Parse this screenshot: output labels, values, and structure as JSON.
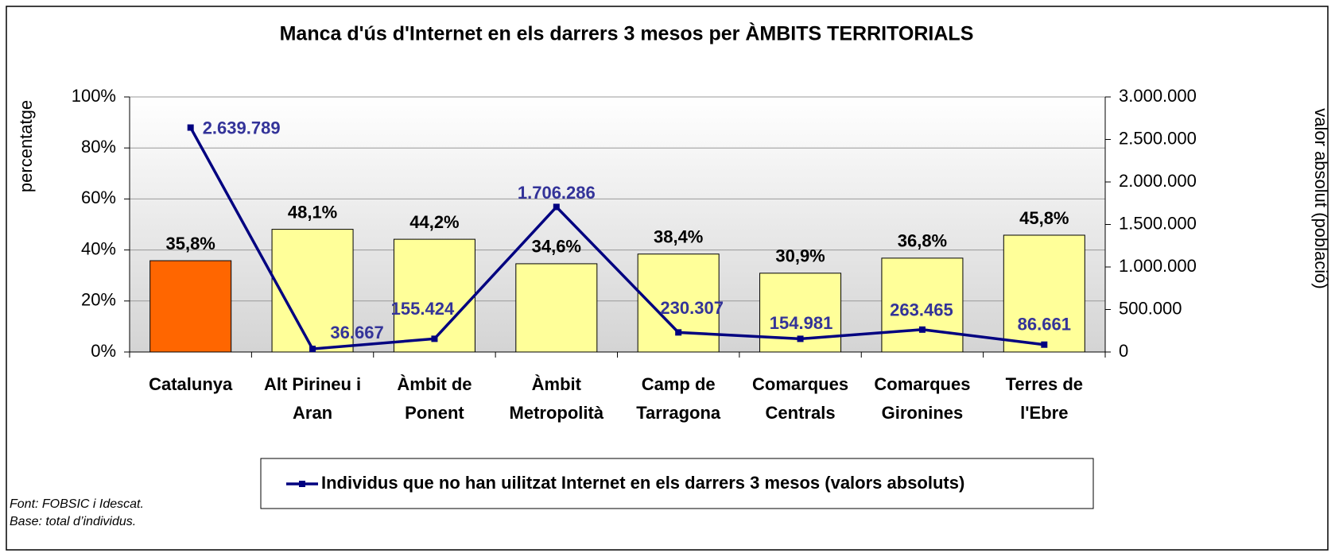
{
  "chart_data": {
    "type": "bar_line",
    "title": "Manca d'ús d'Internet en els darrers 3 mesos per ÀMBITS TERRITORIALS",
    "ylabel": "percentatge",
    "y2label": "valor absolut (població)",
    "categories": [
      [
        "Catalunya"
      ],
      [
        "Alt Pirineu i",
        "Aran"
      ],
      [
        "Àmbit de",
        "Ponent"
      ],
      [
        "Àmbit",
        "Metropolità"
      ],
      [
        "Camp de",
        "Tarragona"
      ],
      [
        "Comarques",
        "Centrals"
      ],
      [
        "Comarques",
        "Gironines"
      ],
      [
        "Terres de",
        "l'Ebre"
      ]
    ],
    "bars": {
      "colors": [
        "#FF6600",
        "#FFFF99",
        "#FFFF99",
        "#FFFF99",
        "#FFFF99",
        "#FFFF99",
        "#FFFF99",
        "#FFFF99"
      ],
      "values": [
        35.8,
        48.1,
        44.2,
        34.6,
        38.4,
        30.9,
        36.8,
        45.8
      ],
      "value_labels": [
        "35,8%",
        "48,1%",
        "44,2%",
        "34,6%",
        "38,4%",
        "30,9%",
        "36,8%",
        "45,8%"
      ]
    },
    "series": [
      {
        "name": "Individus que no han uilitzat Internet en els darrers 3 mesos (valors absoluts)",
        "color": "#000080",
        "axis": "y2",
        "values": [
          2639789,
          36667,
          155424,
          1706286,
          230307,
          154981,
          263465,
          86661
        ],
        "value_labels": [
          "2.639.789",
          "36.667",
          "155.424",
          "1.706.286",
          "230.307",
          "154.981",
          "263.465",
          "86.661"
        ]
      }
    ],
    "ylim": [
      0,
      100
    ],
    "yticks": [
      {
        "value": 0,
        "label": "0%"
      },
      {
        "value": 20,
        "label": "20%"
      },
      {
        "value": 40,
        "label": "40%"
      },
      {
        "value": 60,
        "label": "60%"
      },
      {
        "value": 80,
        "label": "80%"
      },
      {
        "value": 100,
        "label": "100%"
      }
    ],
    "y2lim": [
      0,
      3000000
    ],
    "y2ticks": [
      0,
      {
        "value": 500000,
        "label": "500.000"
      },
      {
        "value": 1000000,
        "label": "1.000.000"
      },
      {
        "value": 1500000,
        "label": "1.500.000"
      },
      {
        "value": 2000000,
        "label": "2.000.000"
      },
      {
        "value": 2500000,
        "label": "2.500.000"
      },
      {
        "value": 3000000,
        "label": "3.000.000"
      }
    ],
    "grid": true,
    "notes": [
      "Font: FOBSIC i Idescat.",
      "Base: total d’individus."
    ]
  }
}
